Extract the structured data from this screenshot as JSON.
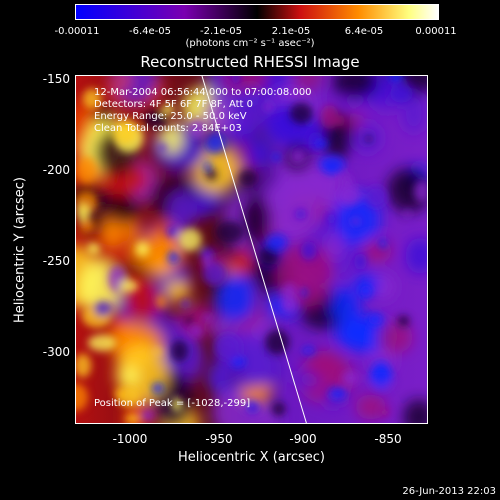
{
  "colorbar": {
    "ticks": [
      "-0.00011",
      "-6.4e-05",
      "-2.1e-05",
      "2.1e-05",
      "6.4e-05",
      "0.00011"
    ],
    "units": "(photons cm⁻² s⁻¹ asec⁻²)",
    "colors": [
      "#0000ff",
      "#7a00b0",
      "#000000",
      "#cc1010",
      "#ff8c00",
      "#ffff80",
      "#ffffff"
    ]
  },
  "chart_data": {
    "type": "heatmap",
    "title": "Reconstructed RHESSI Image",
    "xlabel": "Heliocentric X (arcsec)",
    "ylabel": "Heliocentric Y (arcsec)",
    "xlim": [
      -1030,
      -835
    ],
    "ylim": [
      -340,
      -147
    ],
    "x_ticks": [
      "-1000",
      "-950",
      "-900",
      "-850"
    ],
    "y_ticks": [
      "-150",
      "-200",
      "-250",
      "-300"
    ],
    "colorscale_range": [
      -0.00011,
      0.00011
    ],
    "limb_line": [
      [
        -960,
        -147
      ],
      [
        -902,
        -340
      ]
    ],
    "grid": false
  },
  "info": {
    "line1": "12-Mar-2004 06:56:44.000 to 07:00:08.000",
    "line2": "Detectors: 4F 5F 6F 7F 8F, Att 0",
    "line3": "Energy Range: 25.0 - 50.0 keV",
    "line4": "Clean     Total counts: 2.84E+03",
    "peak": "Position of Peak = [-1028,-299]"
  },
  "timestamp": "26-Jun-2013 22:03"
}
